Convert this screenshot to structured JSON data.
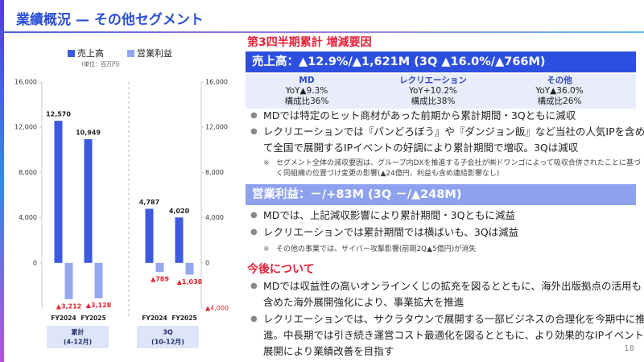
{
  "header": {
    "title": "業績概況 — その他セグメント"
  },
  "chart_data": {
    "type": "bar",
    "subtitle": "(単位：百万円)",
    "categories": [
      "FY2024",
      "FY2025",
      "FY2024",
      "FY2025"
    ],
    "groups": [
      {
        "label": "累計",
        "sublabel": "(4-12月)"
      },
      {
        "label": "3Q",
        "sublabel": "(10-12月)"
      }
    ],
    "series": [
      {
        "name": "売上高",
        "color": "#3b5ae0",
        "values": [
          12570,
          10949,
          4787,
          4020
        ],
        "value_labels": [
          "12,570",
          "10,949",
          "4,787",
          "4,020"
        ],
        "label_color": "#222222"
      },
      {
        "name": "営業利益",
        "color": "#94a6ef",
        "values": [
          -3212,
          -3128,
          -789,
          -1038
        ],
        "value_labels": [
          "▲3,212",
          "▲3,128",
          "▲789",
          "▲1,038"
        ],
        "label_color": "#e3222c"
      }
    ],
    "ylim": [
      -4000,
      16000
    ],
    "yticks": [
      0,
      {
        "value": 4000,
        "label": "4,000"
      },
      {
        "value": 8000,
        "label": "8,000"
      },
      {
        "value": 12000,
        "label": "12,000"
      },
      {
        "value": 16000,
        "label": "16,000"
      }
    ],
    "y2lim": [
      -4000,
      16000
    ],
    "y2ticks": [
      {
        "value": -4000,
        "label": "▲4,000"
      },
      0,
      {
        "value": 4000,
        "label": "4,000"
      },
      {
        "value": 8000,
        "label": "8,000"
      },
      {
        "value": 12000,
        "label": "12,000"
      },
      {
        "value": 16000,
        "label": "16,000"
      }
    ]
  },
  "summary": {
    "heading": "第3四半期累計 増減要因",
    "sales_bar": "売上高：▲12.9%/▲1,621M (3Q ▲16.0%/▲766M)",
    "breakdown": [
      {
        "name": "MD",
        "yoy": "YoY▲9.3%",
        "share": "構成比36%"
      },
      {
        "name": "レクリエーション",
        "yoy": "YoY+10.2%",
        "share": "構成比38%"
      },
      {
        "name": "その他",
        "yoy": "YoY▲36.0%",
        "share": "構成比26%"
      }
    ],
    "sales_bullets": [
      "MDでは特定のヒット商材があった前期から累計期間・3Qともに減収",
      "レクリエーションでは『パンどろぼう』や『ダンジョン飯』など当社の人気IPを含めて全国で展開するIPイベントの好調により累計期間で増収。3Qは減収"
    ],
    "sales_note": "セグメント全体の減収要因は、グループ内DXを推進する子会社が㈱ドワンゴによって吸収合併されたことに基づく同組織の位置づけ変更の影響(▲24億円、利益も含め連結影響なし)",
    "profit_bar": "営業利益：－/+83M (3Q －/▲248M)",
    "profit_bullets": [
      "MDでは、上記減収影響により累計期間・3Qともに減益",
      "レクリエーションでは累計期間では横ばいも、3Qは減益"
    ],
    "profit_note": "その他の事業では、サイバー攻撃影響(前期2Q▲5億円)が消失",
    "outlook_heading": "今後について",
    "outlook_bullets": [
      "MDでは収益性の高いオンラインくじの拡充を図るとともに、海外出版拠点の活用も含めた海外展開強化により、事業拡大を推進",
      "レクリエーションでは、サクラタウンで展開する一部ビジネスの合理化を今期中に推進。中長期では引き続き運営コスト最適化を図るとともに、より効果的なIPイベント展開により業績改善を目指す"
    ]
  },
  "page_number": "18"
}
